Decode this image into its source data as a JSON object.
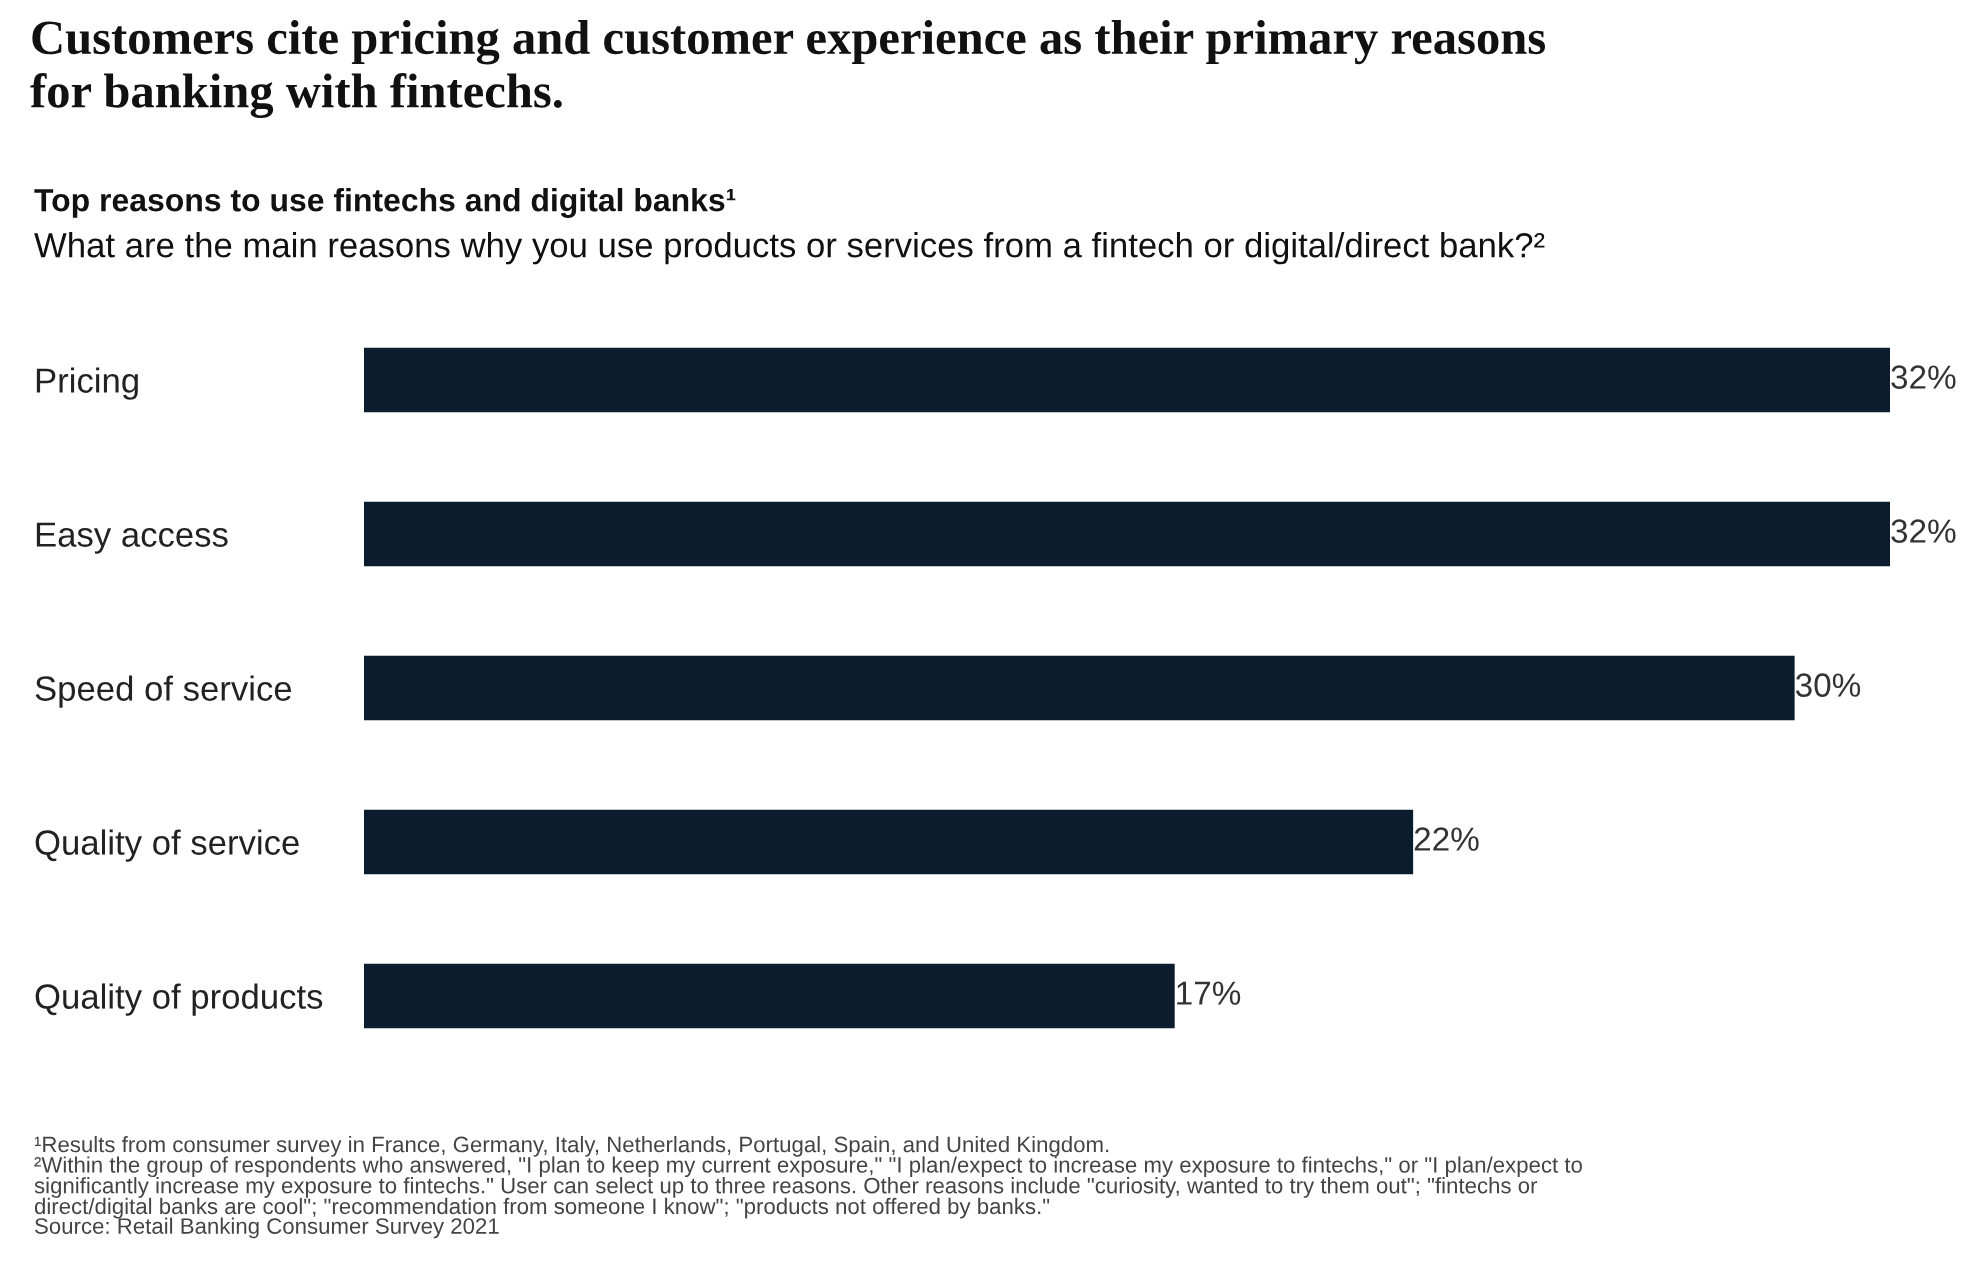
{
  "chart_data": {
    "type": "bar",
    "orientation": "horizontal",
    "title": "Customers cite pricing and customer experience as their primary reasons\nfor banking with fintechs.",
    "subtitle": "Top reasons to use fintechs and digital banks¹\nWhat are the main reasons why you use products or services from a fintech or digital/direct bank?²",
    "categories": [
      "Pricing",
      "Easy access",
      "Speed of service",
      "Quality of service",
      "Quality of products"
    ],
    "values": [
      32,
      32,
      30,
      22,
      17
    ],
    "value_labels": [
      "32%",
      "32%",
      "30%",
      "22%",
      "17%"
    ],
    "color": "#0b1c2c",
    "grid": false,
    "legend": false,
    "annotations": [
      "¹Results from consumer survey in France, Germany, Italy, Netherlands, Portugal, Spain, and United Kingdom.",
      "²Within the group of respondents who answered, \"I plan to keep my current exposure,\" \"I plan/expect to increase my exposure to fintechs,\" or \"I plan/expect to\nsignificantly increase my exposure to fintechs.\" User can select up to three reasons. Other reasons include \"curiosity, wanted to try them out\"; \"fintechs or\ndirect/digital banks are cool\"; \"recommendation from someone I know\"; \"products not offered by banks.\"",
      "Source: Retail Banking Consumer Survey 2021"
    ]
  }
}
